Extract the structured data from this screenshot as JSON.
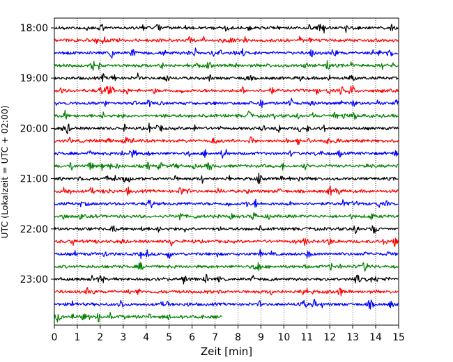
{
  "chart_data": {
    "type": "line",
    "title": "",
    "xlabel": "Zeit  [min]",
    "ylabel": "UTC (Lokalzeit = UTC + 02:00)",
    "xlim": [
      0,
      15
    ],
    "x_ticks": [
      "0",
      "1",
      "2",
      "3",
      "4",
      "5",
      "6",
      "7",
      "8",
      "9",
      "10",
      "11",
      "12",
      "13",
      "14",
      "15"
    ],
    "y_tick_labels": [
      "18:00",
      "19:00",
      "20:00",
      "21:00",
      "22:00",
      "23:00"
    ],
    "grid": "vertical dotted",
    "trace_interval_min": 15,
    "trace_colors": [
      "#000000",
      "#ff0000",
      "#0000ff",
      "#008000"
    ],
    "series": [
      {
        "start": "18:00",
        "duration_min": 15,
        "color": "#000000"
      },
      {
        "start": "18:15",
        "duration_min": 15,
        "color": "#ff0000"
      },
      {
        "start": "18:30",
        "duration_min": 15,
        "color": "#0000ff"
      },
      {
        "start": "18:45",
        "duration_min": 15,
        "color": "#008000"
      },
      {
        "start": "19:00",
        "duration_min": 15,
        "color": "#000000"
      },
      {
        "start": "19:15",
        "duration_min": 15,
        "color": "#ff0000"
      },
      {
        "start": "19:30",
        "duration_min": 15,
        "color": "#0000ff"
      },
      {
        "start": "19:45",
        "duration_min": 15,
        "color": "#008000"
      },
      {
        "start": "20:00",
        "duration_min": 15,
        "color": "#000000"
      },
      {
        "start": "20:15",
        "duration_min": 15,
        "color": "#ff0000"
      },
      {
        "start": "20:30",
        "duration_min": 15,
        "color": "#0000ff"
      },
      {
        "start": "20:45",
        "duration_min": 15,
        "color": "#008000"
      },
      {
        "start": "21:00",
        "duration_min": 15,
        "color": "#000000"
      },
      {
        "start": "21:15",
        "duration_min": 15,
        "color": "#ff0000"
      },
      {
        "start": "21:30",
        "duration_min": 15,
        "color": "#0000ff"
      },
      {
        "start": "21:45",
        "duration_min": 15,
        "color": "#008000"
      },
      {
        "start": "22:00",
        "duration_min": 15,
        "color": "#000000"
      },
      {
        "start": "22:15",
        "duration_min": 15,
        "color": "#ff0000"
      },
      {
        "start": "22:30",
        "duration_min": 15,
        "color": "#0000ff"
      },
      {
        "start": "22:45",
        "duration_min": 15,
        "color": "#008000"
      },
      {
        "start": "23:00",
        "duration_min": 15,
        "color": "#000000"
      },
      {
        "start": "23:15",
        "duration_min": 15,
        "color": "#ff0000"
      },
      {
        "start": "23:30",
        "duration_min": 15,
        "color": "#0000ff"
      },
      {
        "start": "23:45",
        "duration_min": 7.3,
        "color": "#008000"
      }
    ]
  }
}
